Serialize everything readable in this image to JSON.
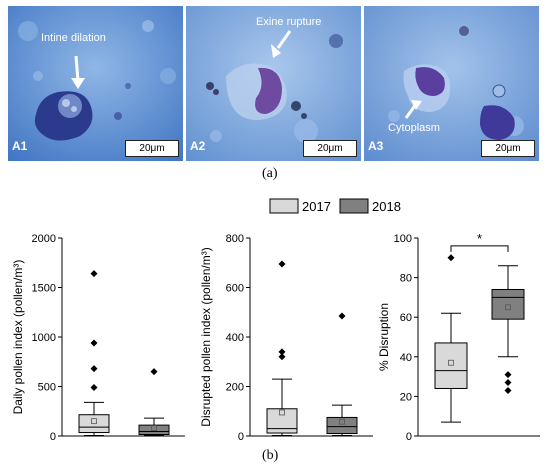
{
  "figure": {
    "caption_a": "(a)",
    "caption_b": "(b)",
    "micrographs": [
      {
        "label": "A1",
        "scale": "20μm",
        "annotation": "Intine dilation"
      },
      {
        "label": "A2",
        "scale": "20μm",
        "annotation": "Exine rupture"
      },
      {
        "label": "A3",
        "scale": "20μm",
        "annotation": "Cytoplasm"
      }
    ],
    "legend": [
      "2017",
      "2018"
    ],
    "colors": {
      "y2017": "#d9d9d9",
      "y2018": "#808080",
      "micrograph_bg": "#6e9fd8",
      "pollen": "#4a3f9e"
    }
  },
  "chart_data": [
    {
      "type": "box",
      "title": "",
      "ylabel": "Daily pollen index (pollen/m³)",
      "ylim": [
        0,
        2000
      ],
      "yticks": [
        0,
        500,
        1000,
        1500,
        2000
      ],
      "series": [
        {
          "name": "2017",
          "whisker_low": 5,
          "q1": 35,
          "median": 90,
          "q3": 215,
          "whisker_high": 340,
          "mean": 150,
          "outliers": [
            490,
            680,
            940,
            1640
          ]
        },
        {
          "name": "2018",
          "whisker_low": 5,
          "q1": 15,
          "median": 45,
          "q3": 110,
          "whisker_high": 180,
          "mean": 80,
          "outliers": [
            650
          ]
        }
      ]
    },
    {
      "type": "box",
      "title": "",
      "ylabel": "Disrupted pollen index (pollen/m³)",
      "ylim": [
        0,
        800
      ],
      "yticks": [
        0,
        200,
        400,
        600,
        800
      ],
      "series": [
        {
          "name": "2017",
          "whisker_low": 2,
          "q1": 12,
          "median": 30,
          "q3": 110,
          "whisker_high": 230,
          "mean": 95,
          "outliers": [
            320,
            340,
            695
          ]
        },
        {
          "name": "2018",
          "whisker_low": 2,
          "q1": 10,
          "median": 38,
          "q3": 75,
          "whisker_high": 125,
          "mean": 58,
          "outliers": [
            485
          ]
        }
      ]
    },
    {
      "type": "box",
      "title": "",
      "ylabel": "% Disruption",
      "ylim": [
        0,
        100
      ],
      "yticks": [
        0,
        20,
        40,
        60,
        80,
        100
      ],
      "significance": "*",
      "series": [
        {
          "name": "2017",
          "whisker_low": 7,
          "q1": 24,
          "median": 33,
          "q3": 47,
          "whisker_high": 62,
          "mean": 37,
          "outliers": [
            90
          ]
        },
        {
          "name": "2018",
          "whisker_low": 40,
          "q1": 59,
          "median": 70,
          "q3": 74,
          "whisker_high": 86,
          "mean": 65,
          "outliers": [
            23,
            27,
            31
          ]
        }
      ]
    }
  ]
}
